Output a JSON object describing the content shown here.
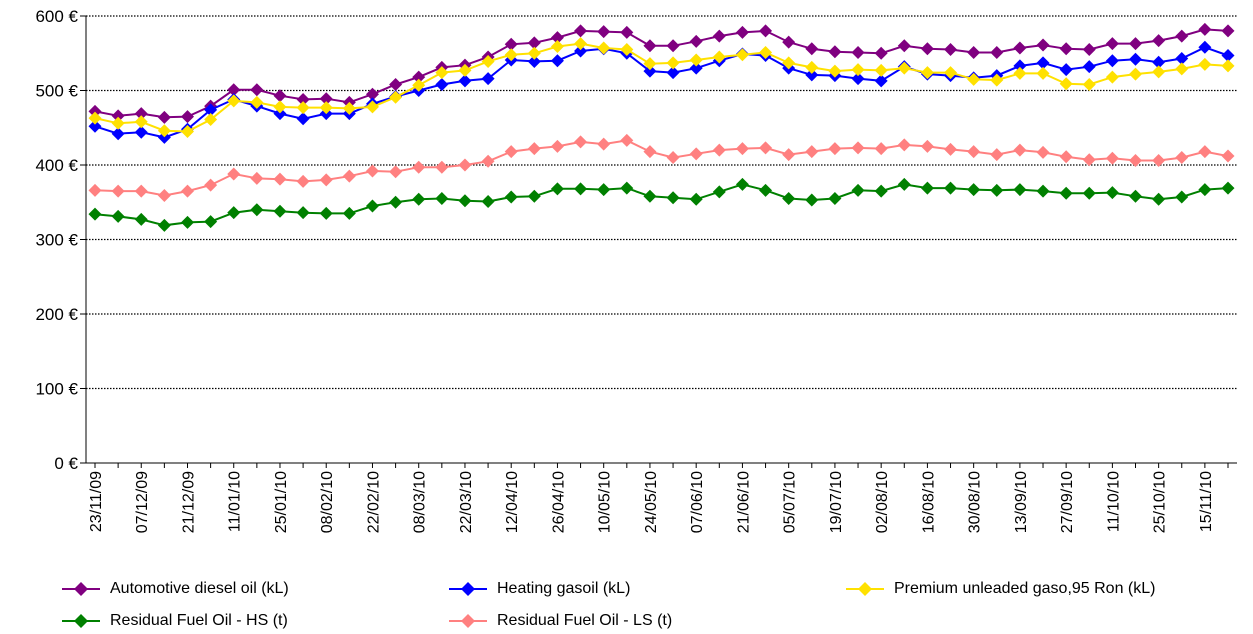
{
  "chart_data": {
    "type": "line",
    "title": "",
    "xlabel": "",
    "ylabel": "",
    "ylim": [
      0,
      600
    ],
    "yticks": [
      0,
      100,
      200,
      300,
      400,
      500,
      600
    ],
    "y_tick_labels": [
      "0 €",
      "100 €",
      "200 €",
      "300 €",
      "400 €",
      "500 €",
      "600 €"
    ],
    "grid": "horizontal dotted",
    "legend_position": "bottom",
    "x_tick_labels": [
      "23/11/09",
      "07/12/09",
      "21/12/09",
      "11/01/10",
      "25/01/10",
      "08/02/10",
      "22/02/10",
      "08/03/10",
      "22/03/10",
      "12/04/10",
      "26/04/10",
      "10/05/10",
      "24/05/10",
      "07/06/10",
      "21/06/10",
      "05/07/10",
      "19/07/10",
      "02/08/10",
      "16/08/10",
      "30/08/10",
      "13/09/10",
      "27/09/10",
      "11/10/10",
      "25/10/10",
      "15/11/10"
    ],
    "series": [
      {
        "name": "Automotive diesel oil (kL)",
        "color": "#800080",
        "values": [
          472,
          466,
          469,
          464,
          465,
          479,
          501,
          501,
          493,
          488,
          489,
          484,
          495,
          508,
          518,
          531,
          534,
          545,
          562,
          564,
          571,
          580,
          579,
          578,
          560,
          560,
          566,
          573,
          578,
          580,
          565,
          556,
          552,
          551,
          550,
          560,
          556,
          555,
          551,
          551,
          557,
          561,
          556,
          555,
          563,
          563,
          567,
          573,
          582,
          580
        ]
      },
      {
        "name": "Heating gasoil (kL)",
        "color": "#0000ff",
        "values": [
          452,
          442,
          444,
          437,
          448,
          474,
          488,
          479,
          469,
          462,
          469,
          469,
          482,
          492,
          500,
          508,
          513,
          516,
          541,
          539,
          540,
          553,
          556,
          550,
          526,
          524,
          530,
          540,
          549,
          547,
          530,
          521,
          520,
          516,
          513,
          532,
          522,
          520,
          517,
          520,
          533,
          537,
          528,
          532,
          540,
          542,
          538,
          543,
          558,
          547
        ]
      },
      {
        "name": "Premium unleaded gaso,95 Ron (kL)",
        "color": "#ffe100",
        "values": [
          463,
          456,
          458,
          446,
          445,
          461,
          486,
          484,
          478,
          477,
          477,
          476,
          478,
          491,
          507,
          524,
          527,
          539,
          548,
          550,
          559,
          563,
          557,
          555,
          536,
          537,
          541,
          545,
          548,
          551,
          537,
          531,
          526,
          528,
          527,
          530,
          524,
          524,
          515,
          514,
          523,
          523,
          509,
          508,
          518,
          522,
          525,
          529,
          535,
          533
        ]
      },
      {
        "name": "Residual Fuel Oil - HS (t)",
        "color": "#008000",
        "values": [
          334,
          331,
          327,
          319,
          323,
          324,
          336,
          340,
          338,
          336,
          335,
          335,
          345,
          350,
          354,
          355,
          352,
          351,
          357,
          358,
          368,
          368,
          367,
          369,
          358,
          356,
          354,
          364,
          374,
          366,
          355,
          353,
          355,
          366,
          365,
          374,
          369,
          369,
          367,
          366,
          367,
          365,
          362,
          362,
          363,
          358,
          354,
          357,
          367,
          369
        ]
      },
      {
        "name": "Residual Fuel Oil - LS (t)",
        "color": "#ff8080",
        "values": [
          366,
          365,
          365,
          359,
          365,
          373,
          388,
          382,
          381,
          378,
          380,
          385,
          392,
          391,
          397,
          397,
          400,
          405,
          418,
          422,
          425,
          431,
          428,
          433,
          418,
          410,
          415,
          420,
          422,
          423,
          414,
          418,
          422,
          423,
          422,
          427,
          425,
          421,
          418,
          414,
          420,
          417,
          411,
          407,
          409,
          406,
          406,
          410,
          418,
          412
        ]
      }
    ]
  }
}
